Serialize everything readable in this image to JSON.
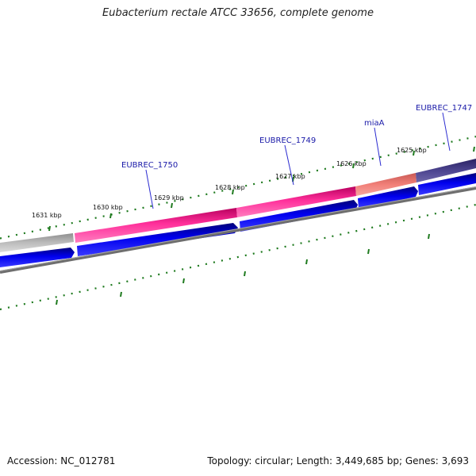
{
  "title": "Eubacterium rectale ATCC 33656, complete genome",
  "footer": {
    "accession_label": "Accession:",
    "accession": "NC_012781",
    "topology_label": "Topology:",
    "topology": "circular",
    "length_label": "Length:",
    "length": "3,449,685 bp",
    "genes_label": "Genes:",
    "genes": "3,693"
  },
  "tick_labels": [
    "1631 kbp",
    "1630 kbp",
    "1629 kbp",
    "1628 kbp",
    "1627 kbp",
    "1626 kbp",
    "1625 kbp"
  ],
  "gene_labels": [
    "EUBREC_1750",
    "EUBREC_1749",
    "miaA",
    "EUBREC_1747"
  ],
  "colors": {
    "backbone": "#7a7a7a",
    "cds_forward": "#0000ee",
    "gene_pink": "#ff2f9a",
    "gene_salmon": "#f17f78",
    "gene_purple": "#4d4590",
    "gene_gray": "#bcbcbc",
    "tick_green": "#1e7a1e",
    "label_blue": "#1a1aa8"
  }
}
